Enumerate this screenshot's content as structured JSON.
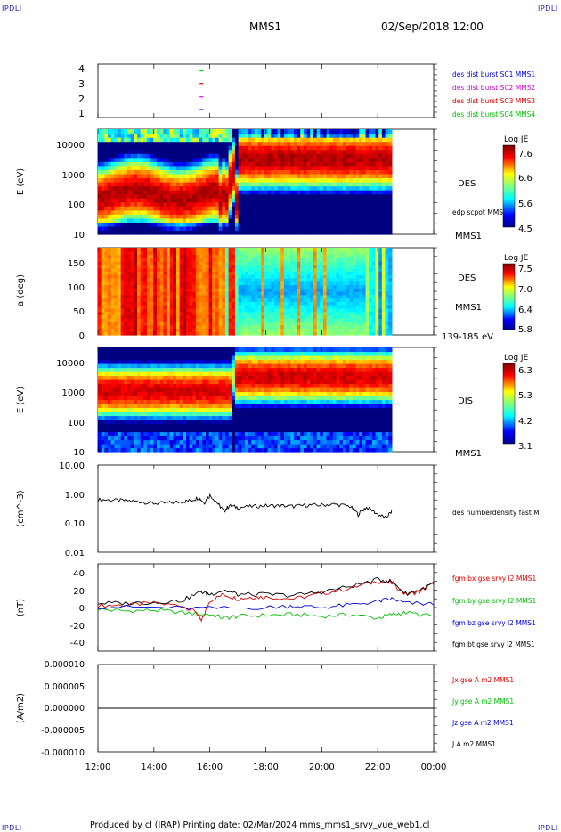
{
  "corner_labels": [
    "IPDLI",
    "IPDLI",
    "IPDLI",
    "IPDLI"
  ],
  "header": {
    "spacecraft": "MMS1",
    "datetime": "02/Sep/2018 12:00"
  },
  "footer": "Produced by cl (IRAP)   Printing date: 02/Mar/2024   mms_mms1_srvy_vue_web1.cl",
  "colors": {
    "red": "#e00000",
    "green": "#00c000",
    "blue": "#0000e0",
    "magenta": "#d000d0",
    "black": "#000000",
    "brand": "#1d1db0"
  },
  "x_axis": {
    "min_hours": 12,
    "max_hours": 24,
    "ticks": [
      "12:00",
      "14:00",
      "16:00",
      "18:00",
      "20:00",
      "22:00",
      "00:00"
    ]
  },
  "chart_data": [
    {
      "type": "scatter",
      "panel": "burst",
      "ylim": [
        0.5,
        4.5
      ],
      "yticks": [
        "1",
        "2",
        "3",
        "4"
      ],
      "series": [
        {
          "name": "des dist burst SC1 MMS1",
          "color": "#0000e0",
          "x_hours": [
            15.7
          ],
          "y": [
            1.1
          ]
        },
        {
          "name": "des dist burst SC2 MMS2",
          "color": "#d000d0",
          "x_hours": [
            15.7
          ],
          "y": [
            2.05
          ]
        },
        {
          "name": "des dist burst SC3 MMS3",
          "color": "#e00000",
          "x_hours": [
            15.7
          ],
          "y": [
            3.05
          ]
        },
        {
          "name": "des dist burst SC4 MMS4",
          "color": "#00c000",
          "x_hours": [
            15.7
          ],
          "y": [
            4.0
          ]
        }
      ]
    },
    {
      "type": "heatmap",
      "panel": "des_energy",
      "ylabel": "E (eV)",
      "yscale": "log",
      "ylim": [
        10,
        30000
      ],
      "yticks": [
        "10",
        "100",
        "1000",
        "10000"
      ],
      "data_end_hours": 22.5,
      "labels": [
        "DES",
        "edp scpot MMS1",
        "MMS1"
      ],
      "colorbar": {
        "title": "Log JE",
        "ticks": [
          "7.6",
          "6.6",
          "5.6",
          "4.5"
        ],
        "min": 4.5,
        "max": 7.6
      }
    },
    {
      "type": "heatmap",
      "panel": "des_pitch",
      "ylabel": "a (deg)",
      "ylim": [
        0,
        180
      ],
      "yticks": [
        "0",
        "50",
        "100",
        "150"
      ],
      "data_end_hours": 22.5,
      "labels": [
        "DES",
        "MMS1",
        "139-185 eV"
      ],
      "colorbar": {
        "title": "Log JE",
        "ticks": [
          "7.5",
          "7.0",
          "6.4",
          "5.8"
        ],
        "min": 5.8,
        "max": 7.5
      }
    },
    {
      "type": "heatmap",
      "panel": "dis_energy",
      "ylabel": "E (eV)",
      "yscale": "log",
      "ylim": [
        10,
        30000
      ],
      "yticks": [
        "10",
        "100",
        "1000",
        "10000"
      ],
      "data_end_hours": 22.5,
      "labels": [
        "DIS",
        "MMS1"
      ],
      "colorbar": {
        "title": "Log JE",
        "ticks": [
          "6.3",
          "5.3",
          "4.2",
          "3.1"
        ],
        "min": 3.1,
        "max": 6.3
      }
    },
    {
      "type": "line",
      "panel": "density",
      "ylabel": "(cm^-3)",
      "yscale": "log",
      "ylim": [
        0.01,
        10
      ],
      "yticks": [
        "0.01",
        "0.10",
        "1.00",
        "10.00"
      ],
      "series": [
        {
          "name": "des numberdensity fast M",
          "color": "#000000",
          "x_hours": [
            12.0,
            12.5,
            13.0,
            13.5,
            14.0,
            14.5,
            15.0,
            15.3,
            15.6,
            15.8,
            16.0,
            16.3,
            16.5,
            16.7,
            17.0,
            17.5,
            18.0,
            18.5,
            19.0,
            19.5,
            20.0,
            20.5,
            21.0,
            21.3,
            21.6,
            22.0,
            22.3,
            22.5
          ],
          "y": [
            0.65,
            0.62,
            0.6,
            0.55,
            0.48,
            0.5,
            0.55,
            0.6,
            0.75,
            0.5,
            0.9,
            0.45,
            0.25,
            0.4,
            0.35,
            0.38,
            0.4,
            0.4,
            0.38,
            0.42,
            0.42,
            0.45,
            0.38,
            0.2,
            0.35,
            0.2,
            0.15,
            0.25
          ]
        }
      ]
    },
    {
      "type": "line",
      "panel": "magnetic_field",
      "ylabel": "(nT)",
      "ylim": [
        -50,
        50
      ],
      "yticks": [
        "-40",
        "-20",
        "0",
        "20",
        "40"
      ],
      "series": [
        {
          "name": "fgm bx gse srvy l2 MMS1",
          "color": "#e00000",
          "x_hours": [
            12,
            13,
            14,
            15,
            15.5,
            15.7,
            16,
            16.5,
            17,
            17.5,
            18,
            19,
            20,
            21,
            22,
            22.5,
            23,
            23.5,
            24
          ],
          "y": [
            2,
            3,
            5,
            2,
            -5,
            -16,
            8,
            15,
            10,
            12,
            12,
            10,
            16,
            22,
            30,
            28,
            15,
            18,
            28
          ]
        },
        {
          "name": "fgm by gse srvy l2 MMS1",
          "color": "#00c000",
          "x_hours": [
            12,
            13,
            14,
            15,
            16,
            16.5,
            17,
            18,
            19,
            20,
            21,
            22,
            22.5,
            23,
            24
          ],
          "y": [
            -2,
            -4,
            -3,
            -6,
            -8,
            -12,
            -10,
            -9,
            -8,
            -10,
            -8,
            -12,
            -8,
            -6,
            -10
          ]
        },
        {
          "name": "fgm bz gse srvy l2 MMS1",
          "color": "#0000e0",
          "x_hours": [
            12,
            14,
            16,
            18,
            19,
            20,
            21,
            22,
            22.5,
            23,
            24
          ],
          "y": [
            1,
            0,
            -1,
            0,
            2,
            0,
            3,
            7,
            10,
            5,
            4
          ]
        },
        {
          "name": "fgm bt gse srvy l2 MMS1",
          "color": "#000000",
          "x_hours": [
            12,
            13,
            14,
            15,
            15.7,
            16,
            16.5,
            17,
            18,
            19,
            20,
            21,
            22,
            22.5,
            23,
            23.5,
            24
          ],
          "y": [
            5,
            5,
            6,
            8,
            18,
            15,
            20,
            15,
            15,
            14,
            18,
            24,
            32,
            30,
            16,
            20,
            28
          ]
        }
      ]
    },
    {
      "type": "line",
      "panel": "current_density",
      "ylabel": "(A/m2)",
      "ylim": [
        -1e-05,
        1e-05
      ],
      "yticks": [
        "-0.000010",
        "-0.000005",
        "0.000000",
        "0.000005",
        "0.000010"
      ],
      "series": [
        {
          "name": "Jx gse A m2 MMS1",
          "color": "#e00000",
          "x_hours": [
            12,
            24
          ],
          "y": [
            0,
            0
          ]
        },
        {
          "name": "Jy gse A m2 MMS1",
          "color": "#00c000",
          "x_hours": [
            12,
            24
          ],
          "y": [
            0,
            0
          ]
        },
        {
          "name": "Jz gse A m2 MMS1",
          "color": "#0000e0",
          "x_hours": [
            12,
            24
          ],
          "y": [
            0,
            0
          ]
        },
        {
          "name": "J A m2 MMS1",
          "color": "#000000",
          "x_hours": [
            12,
            24
          ],
          "y": [
            0,
            0
          ]
        }
      ]
    }
  ]
}
